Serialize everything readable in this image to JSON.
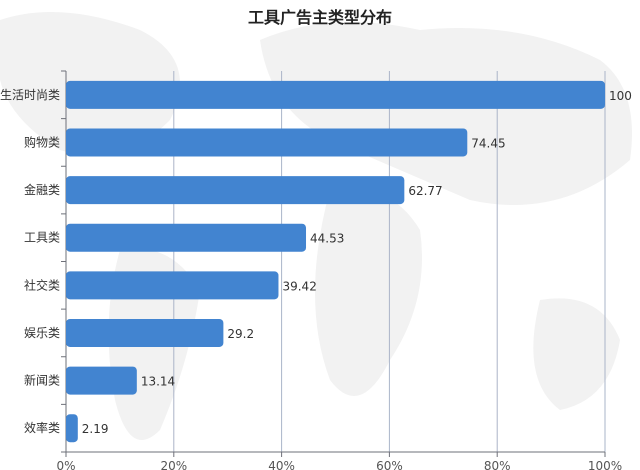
{
  "chart_data": {
    "type": "bar",
    "orientation": "horizontal",
    "title": "工具广告主类型分布",
    "categories": [
      "生活时尚类",
      "购物类",
      "金融类",
      "工具类",
      "社交类",
      "娱乐类",
      "新闻类",
      "效率类"
    ],
    "values": [
      100,
      74.45,
      62.77,
      44.53,
      39.42,
      29.2,
      13.14,
      2.19
    ],
    "data_labels": [
      "100",
      "74.45",
      "62.77",
      "44.53",
      "39.42",
      "29.2",
      "13.14",
      "2.19"
    ],
    "xlim": [
      0,
      100
    ],
    "x_ticks": [
      "0%",
      "20%",
      "40%",
      "60%",
      "80%",
      "100%"
    ],
    "xlabel": "",
    "ylabel": "",
    "grid": "vertical",
    "bar_color": "#4284d0",
    "grid_color": "#aab4c8",
    "background": "faint gray world map"
  }
}
